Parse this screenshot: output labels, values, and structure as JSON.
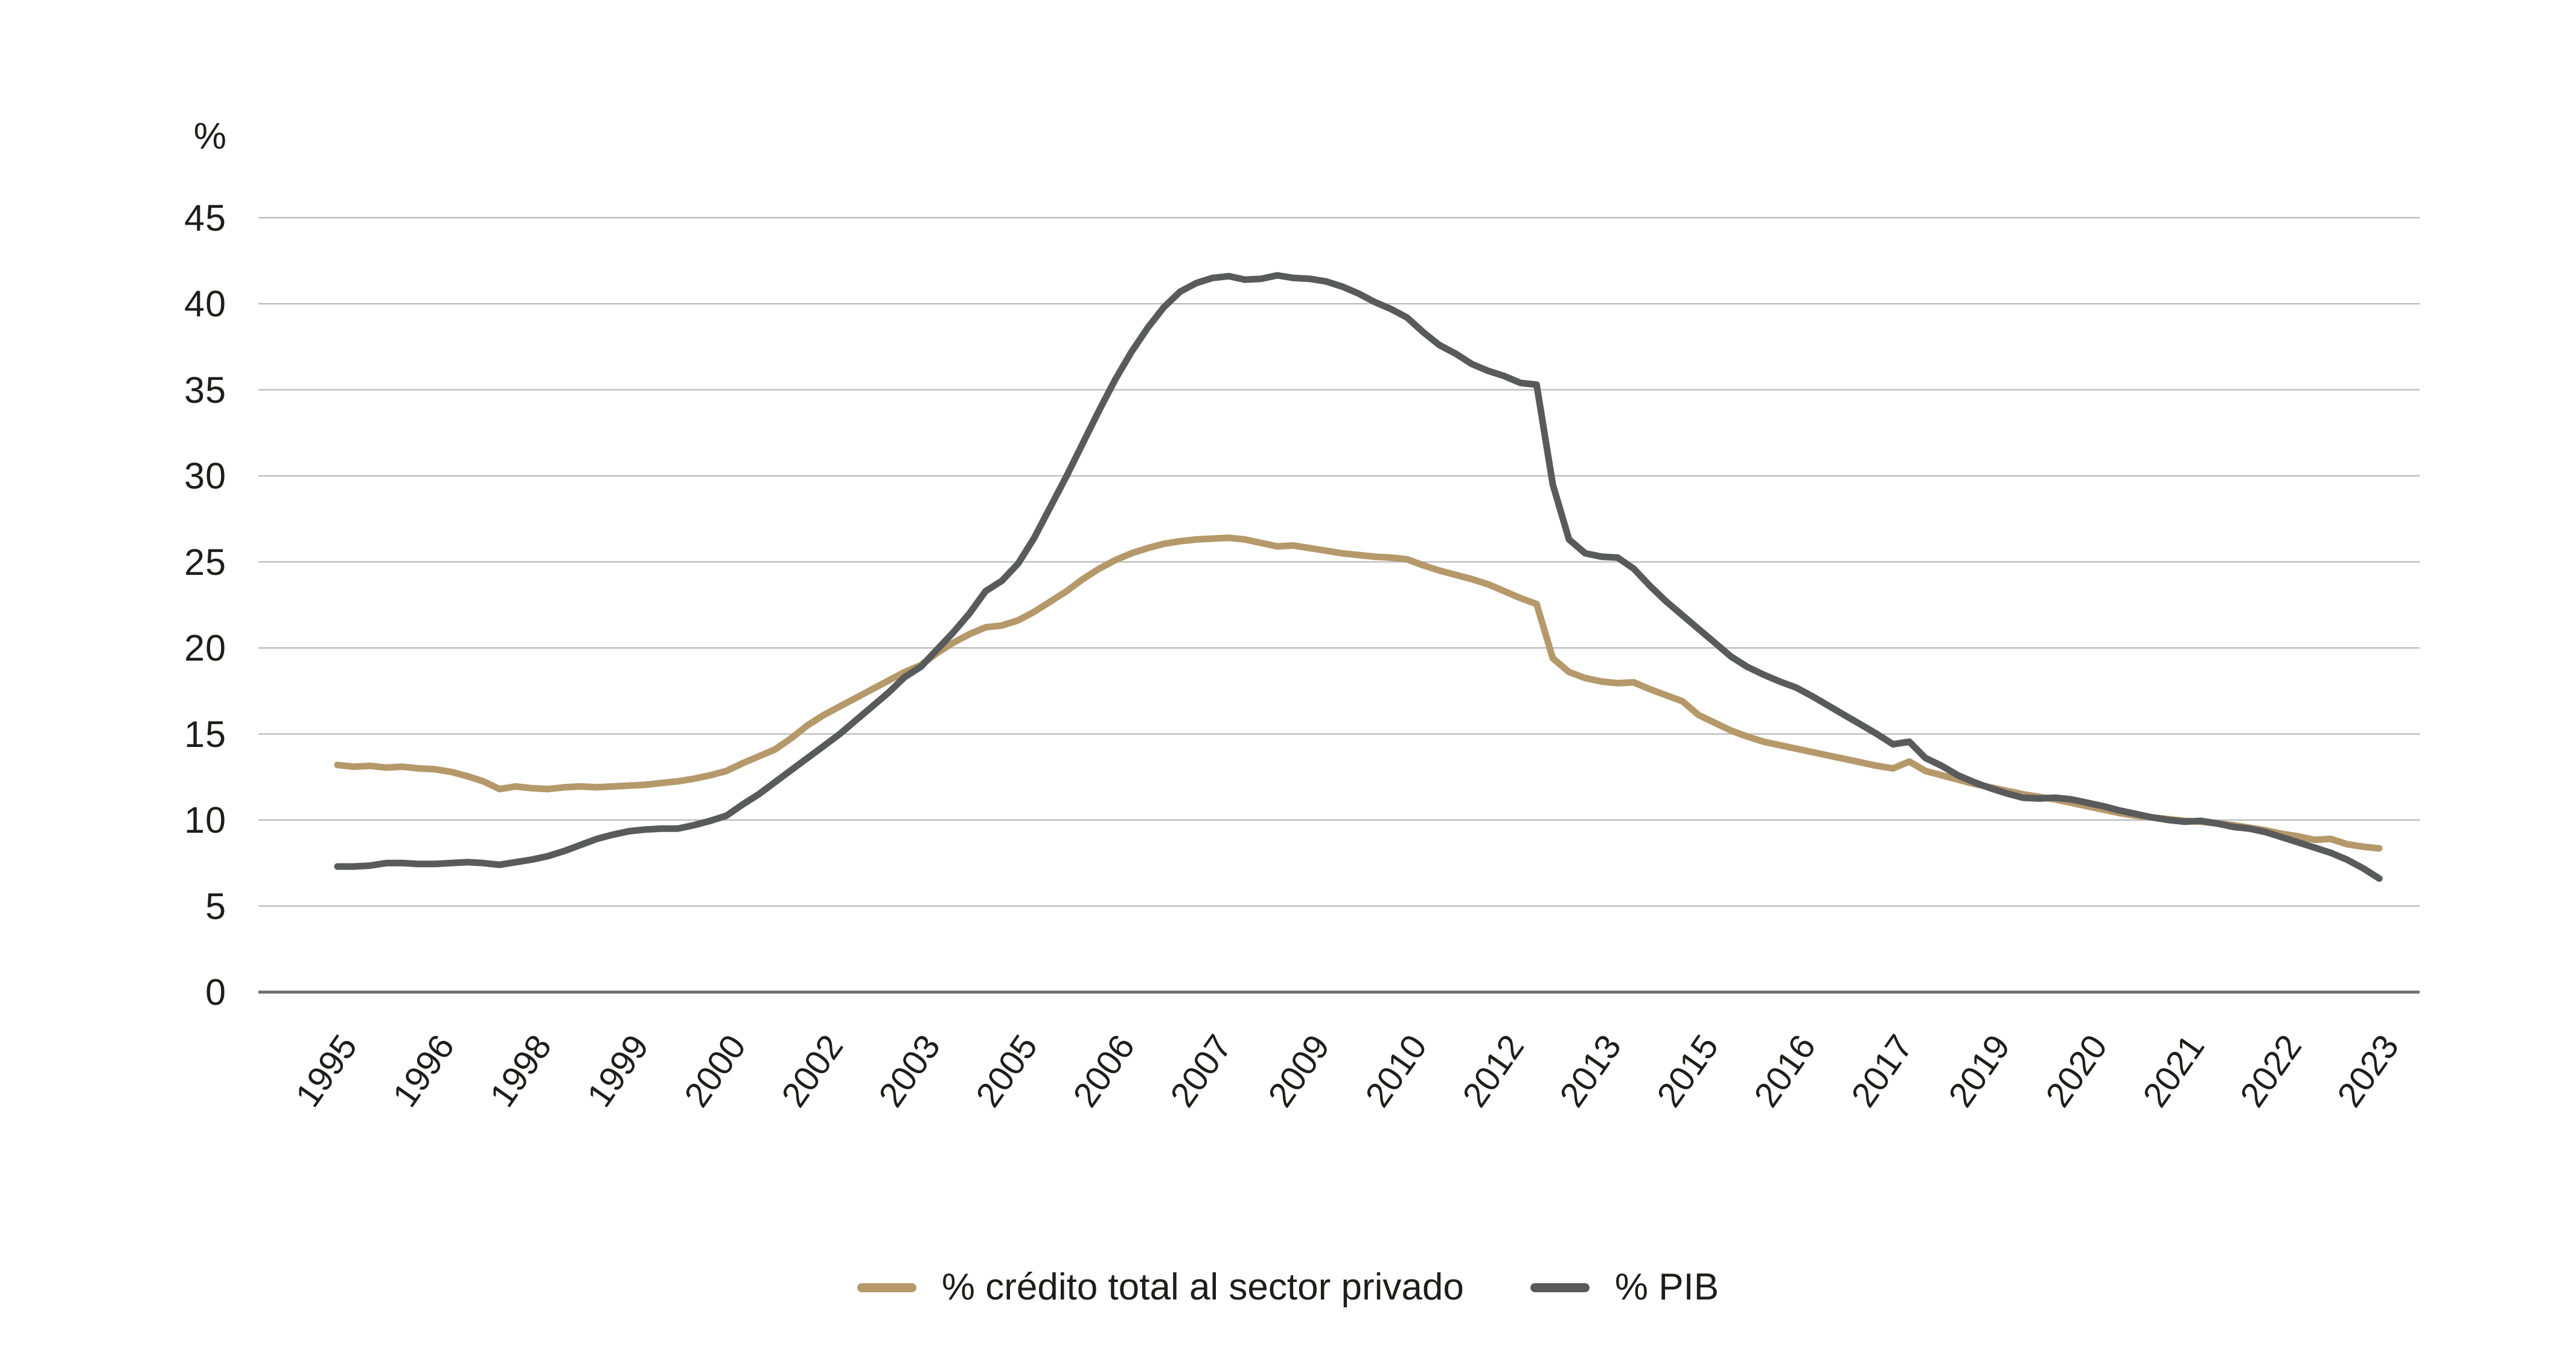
{
  "chart_data": {
    "type": "line",
    "title": "",
    "unit_label": "%",
    "ylabel": "%",
    "xlabel": "",
    "grid": "horizontal",
    "legend_position": "bottom-center",
    "ylim": [
      0,
      47
    ],
    "y_ticks": [
      0,
      5,
      10,
      15,
      20,
      25,
      30,
      35,
      40,
      45
    ],
    "x_tick_labels": [
      "1995",
      "1996",
      "1998",
      "1999",
      "2000",
      "2002",
      "2003",
      "2005",
      "2006",
      "2007",
      "2009",
      "2010",
      "2012",
      "2013",
      "2015",
      "2016",
      "2017",
      "2019",
      "2020",
      "2021",
      "2022",
      "2023"
    ],
    "x_label_rotation_deg": -55,
    "samples_per_label_gap": 6,
    "colors": {
      "grid_line": "#b9b9b9",
      "axis_line": "#6f6f6f",
      "text": "#1d1d1b",
      "background": "#ffffff"
    },
    "series": [
      {
        "name": "% crédito total al sector privado",
        "color": "#b5996a",
        "peak_value": 26.4,
        "end_value": 8.35,
        "values": [
          13.2,
          13.1,
          13.15,
          13.05,
          13.1,
          13.0,
          12.95,
          12.8,
          12.55,
          12.25,
          11.8,
          11.95,
          11.85,
          11.8,
          11.9,
          11.95,
          11.9,
          11.95,
          12.0,
          12.05,
          12.15,
          12.25,
          12.4,
          12.6,
          12.85,
          13.3,
          13.7,
          14.1,
          14.75,
          15.5,
          16.1,
          16.6,
          17.1,
          17.6,
          18.1,
          18.6,
          19.0,
          19.7,
          20.3,
          20.8,
          21.2,
          21.3,
          21.6,
          22.1,
          22.7,
          23.3,
          24.0,
          24.6,
          25.1,
          25.5,
          25.8,
          26.05,
          26.2,
          26.3,
          26.35,
          26.4,
          26.3,
          26.1,
          25.9,
          25.95,
          25.8,
          25.65,
          25.5,
          25.4,
          25.3,
          25.25,
          25.15,
          24.8,
          24.5,
          24.25,
          24.0,
          23.7,
          23.3,
          22.9,
          22.55,
          19.4,
          18.6,
          18.25,
          18.05,
          17.95,
          18.0,
          17.6,
          17.25,
          16.9,
          16.1,
          15.65,
          15.2,
          14.85,
          14.55,
          14.35,
          14.15,
          13.95,
          13.75,
          13.55,
          13.35,
          13.15,
          13.0,
          13.4,
          12.85,
          12.6,
          12.35,
          12.1,
          11.9,
          11.7,
          11.5,
          11.35,
          11.2,
          11.0,
          10.8,
          10.6,
          10.4,
          10.25,
          10.15,
          10.05,
          9.95,
          9.9,
          9.8,
          9.7,
          9.55,
          9.4,
          9.2,
          9.05,
          8.85,
          8.9,
          8.6,
          8.45,
          8.35
        ]
      },
      {
        "name": "% PIB",
        "color": "#595a5c",
        "peak_value": 41.65,
        "end_value": 6.6,
        "values": [
          7.3,
          7.3,
          7.35,
          7.5,
          7.5,
          7.45,
          7.45,
          7.5,
          7.55,
          7.5,
          7.4,
          7.55,
          7.7,
          7.9,
          8.2,
          8.55,
          8.9,
          9.15,
          9.35,
          9.45,
          9.5,
          9.5,
          9.7,
          9.95,
          10.25,
          10.9,
          11.5,
          12.2,
          12.9,
          13.6,
          14.3,
          15.0,
          15.8,
          16.6,
          17.4,
          18.3,
          18.9,
          19.9,
          20.9,
          22.0,
          23.3,
          23.9,
          24.9,
          26.4,
          28.2,
          30.0,
          31.9,
          33.8,
          35.6,
          37.2,
          38.6,
          39.8,
          40.7,
          41.2,
          41.5,
          41.6,
          41.4,
          41.45,
          41.65,
          41.5,
          41.45,
          41.3,
          41.0,
          40.6,
          40.1,
          39.7,
          39.2,
          38.35,
          37.6,
          37.1,
          36.5,
          36.1,
          35.8,
          35.4,
          35.3,
          29.5,
          26.3,
          25.5,
          25.3,
          25.25,
          24.6,
          23.6,
          22.7,
          21.9,
          21.1,
          20.3,
          19.5,
          18.9,
          18.45,
          18.05,
          17.7,
          17.2,
          16.65,
          16.1,
          15.55,
          15.0,
          14.4,
          14.55,
          13.6,
          13.15,
          12.6,
          12.2,
          11.85,
          11.55,
          11.3,
          11.25,
          11.3,
          11.2,
          11.0,
          10.8,
          10.55,
          10.35,
          10.15,
          10.0,
          9.9,
          9.95,
          9.8,
          9.6,
          9.5,
          9.3,
          9.0,
          8.7,
          8.4,
          8.1,
          7.7,
          7.2,
          6.6
        ]
      }
    ]
  }
}
